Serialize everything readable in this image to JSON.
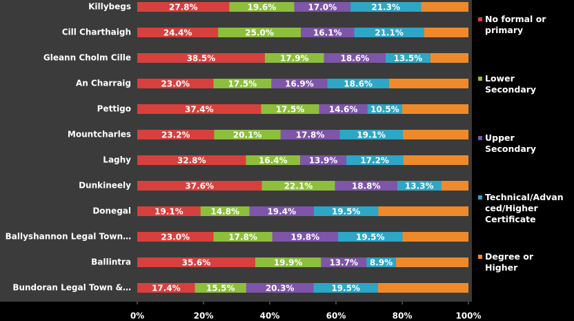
{
  "chart_data": {
    "type": "stacked-bar-horizontal",
    "categories": [
      "Killybegs",
      "Cill Charthaigh",
      "Gleann Cholm Cille",
      "An Charraig",
      "Pettigo",
      "Mountcharles",
      "Laghy",
      "Dunkineely",
      "Donegal",
      "Ballyshannon Legal Town…",
      "Ballintra",
      "Bundoran Legal Town &…"
    ],
    "series": [
      {
        "name": "No formal or primary",
        "color": "#d8403d",
        "values": [
          27.8,
          24.4,
          38.5,
          23.0,
          37.4,
          23.2,
          32.8,
          37.6,
          19.1,
          23.0,
          35.6,
          17.4
        ],
        "value_labels": [
          "27.8%",
          "24.4%",
          "38.5%",
          "23.0%",
          "37.4%",
          "23.2%",
          "32.8%",
          "37.6%",
          "19.1%",
          "23.0%",
          "35.6%",
          "17.4%"
        ]
      },
      {
        "name": "Lower Secondary",
        "color": "#8dbf3c",
        "values": [
          19.6,
          25.0,
          17.9,
          17.5,
          17.5,
          20.1,
          16.4,
          22.1,
          14.8,
          17.8,
          19.9,
          15.5
        ],
        "value_labels": [
          "19.6%",
          "25.0%",
          "17.9%",
          "17.5%",
          "17.5%",
          "20.1%",
          "16.4%",
          "22.1%",
          "14.8%",
          "17.8%",
          "19.9%",
          "15.5%"
        ]
      },
      {
        "name": "Upper Secondary",
        "color": "#7e55a9",
        "values": [
          17.0,
          16.1,
          18.6,
          16.9,
          14.6,
          17.8,
          13.9,
          18.8,
          19.4,
          19.8,
          13.7,
          20.3
        ],
        "value_labels": [
          "17.0%",
          "16.1%",
          "18.6%",
          "16.9%",
          "14.6%",
          "17.8%",
          "13.9%",
          "18.8%",
          "19.4%",
          "19.8%",
          "13.7%",
          "20.3%"
        ]
      },
      {
        "name": "Technical/Advanced/Higher Certificate",
        "color": "#2ea6c6",
        "values": [
          21.3,
          21.1,
          13.5,
          18.6,
          10.5,
          19.1,
          17.2,
          13.3,
          19.5,
          19.5,
          8.9,
          19.5
        ],
        "value_labels": [
          "21.3%",
          "21.1%",
          "13.5%",
          "18.6%",
          "10.5%",
          "19.1%",
          "17.2%",
          "13.3%",
          "19.5%",
          "19.5%",
          "8.9%",
          "19.5%"
        ]
      },
      {
        "name": "Degree or Higher",
        "color": "#ef8a2b",
        "values": [
          14.3,
          13.4,
          11.5,
          24.0,
          20.0,
          19.8,
          19.7,
          8.2,
          27.2,
          19.9,
          21.9,
          27.3
        ]
      }
    ],
    "xlim": [
      0,
      100
    ],
    "xticks": [
      {
        "value": 0,
        "label": "0%"
      },
      {
        "value": 20,
        "label": "20%"
      },
      {
        "value": 40,
        "label": "40%"
      },
      {
        "value": 60,
        "label": "60%"
      },
      {
        "value": 80,
        "label": "80%"
      },
      {
        "value": 100,
        "label": "100%"
      }
    ],
    "legend": "right"
  }
}
